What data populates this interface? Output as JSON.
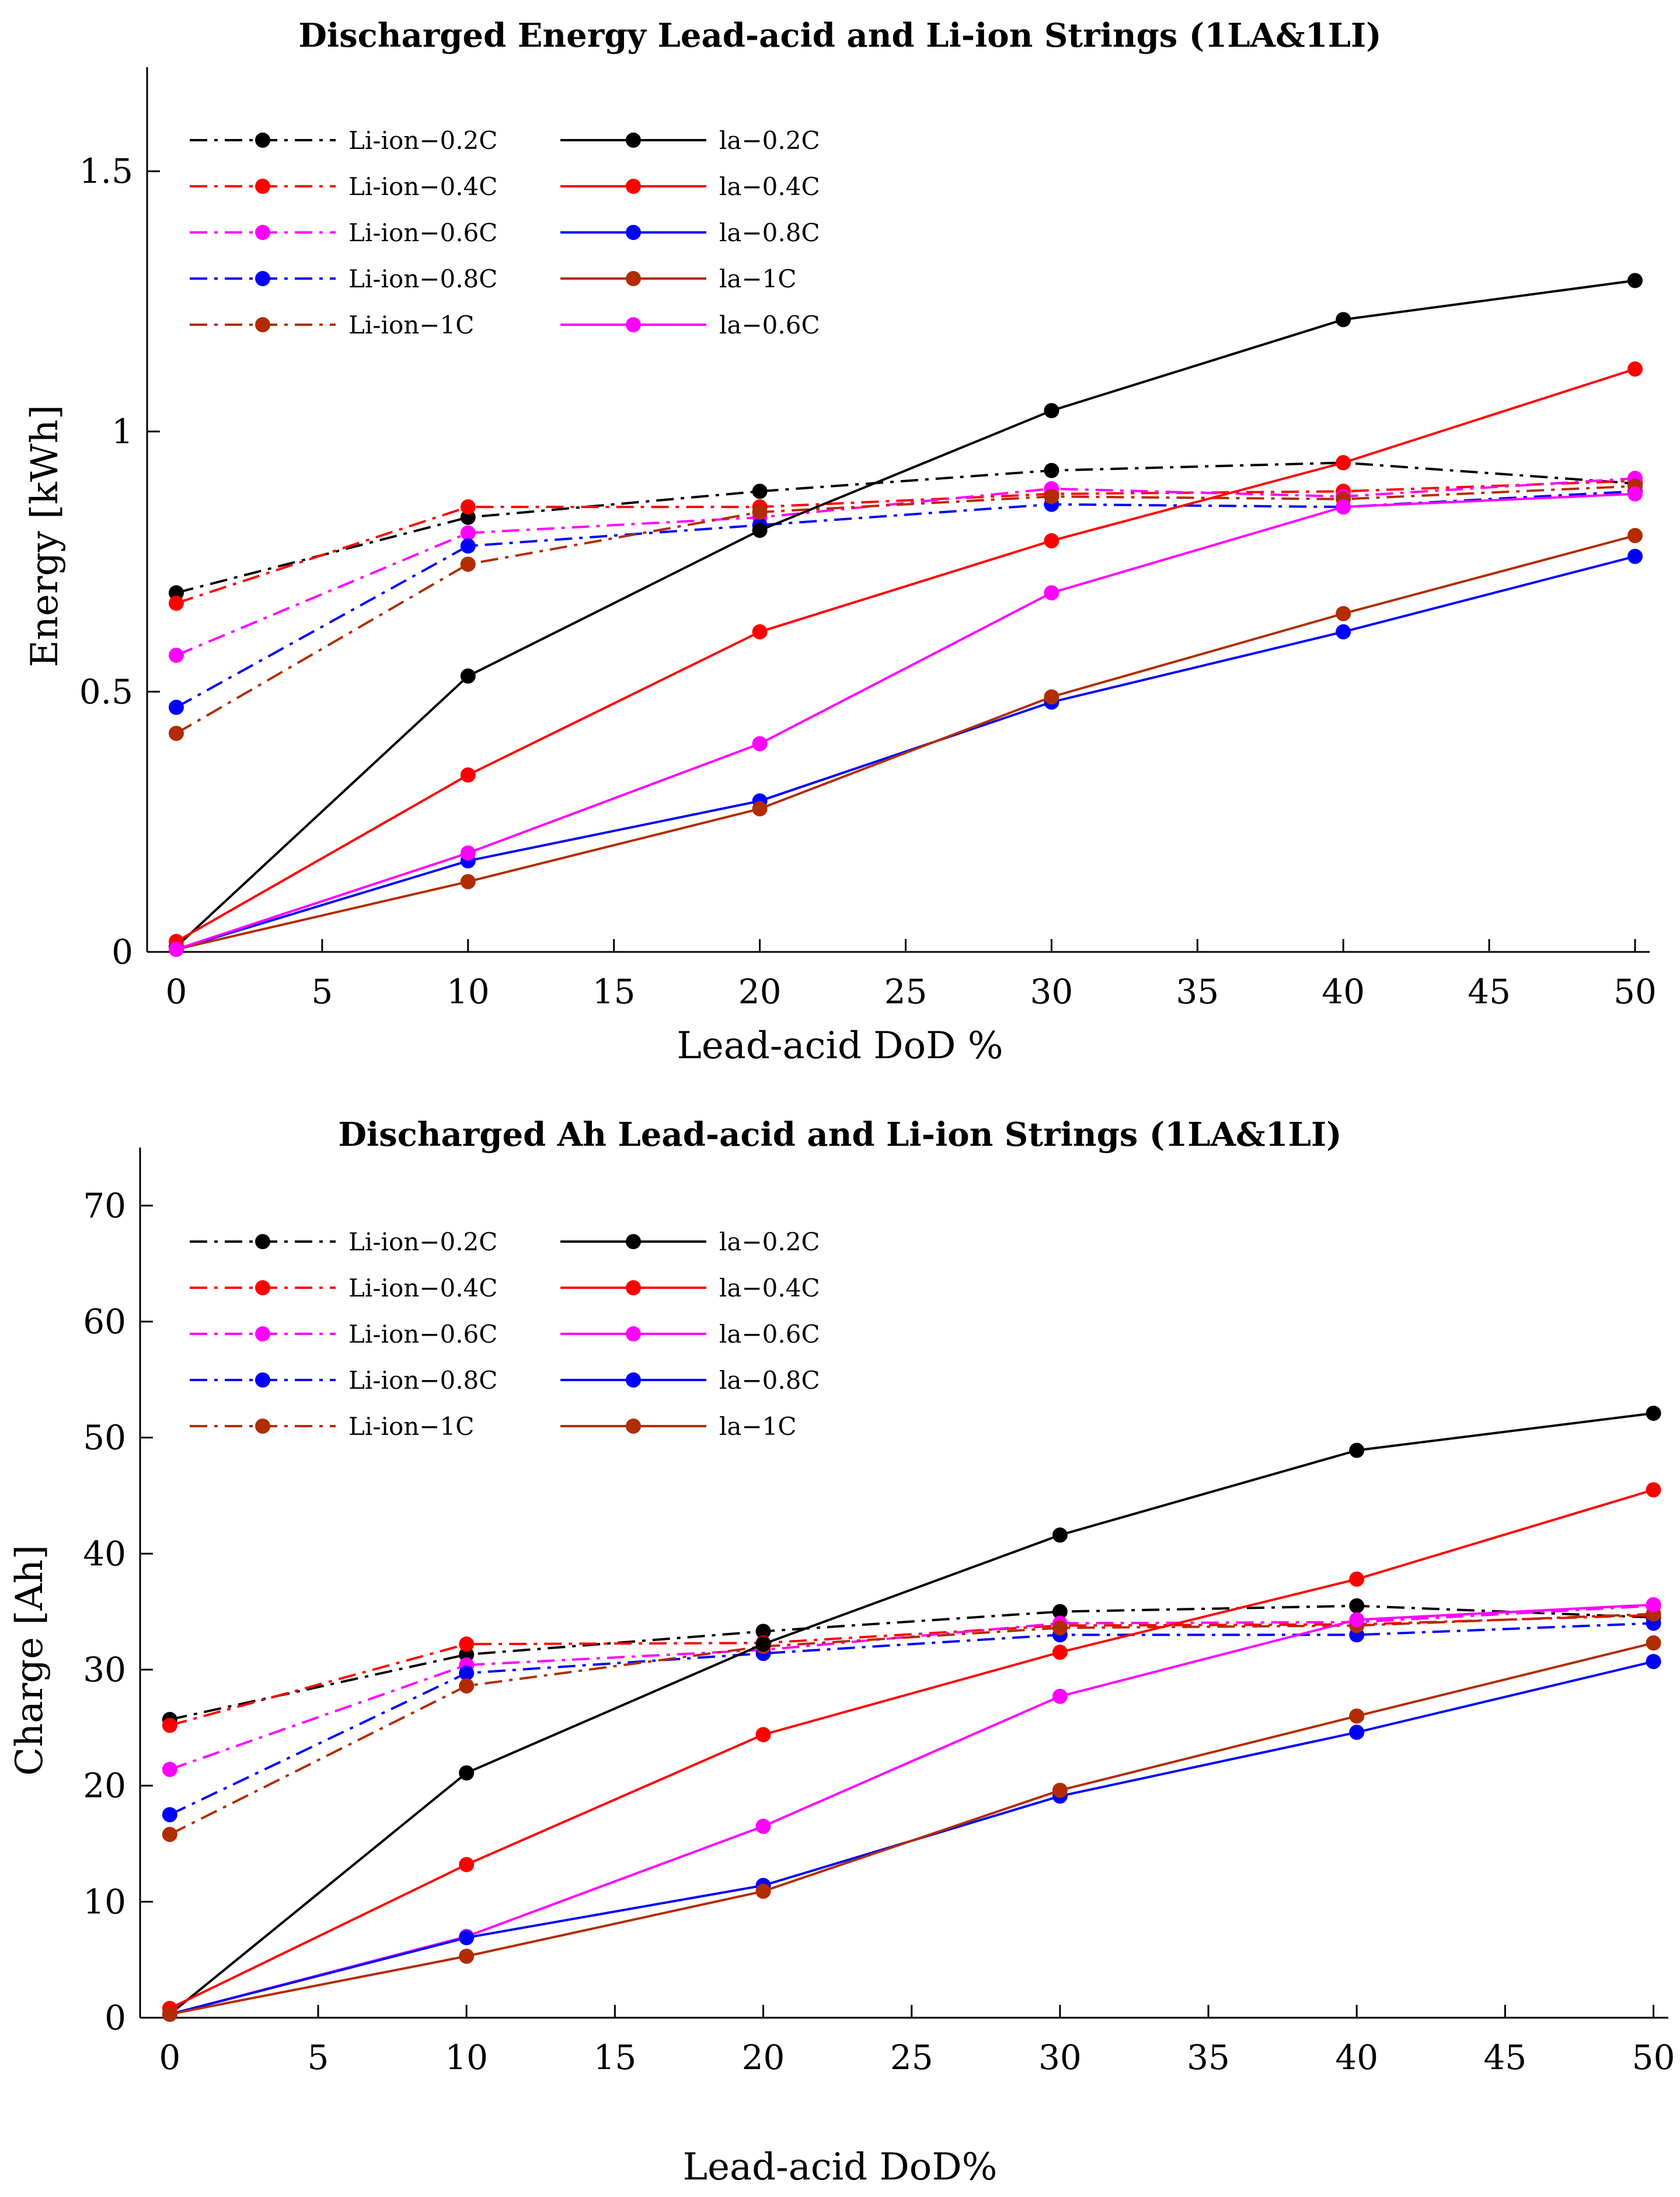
{
  "chart_data": [
    {
      "type": "line",
      "title": "Discharged Energy Lead-acid and Li-ion Strings (1LA&1LI)",
      "xlabel": "Lead-acid DoD %",
      "ylabel": "Energy [kWh]",
      "xlim": [
        -1,
        50.5
      ],
      "ylim": [
        0,
        1.7
      ],
      "xticks": [
        0,
        5,
        10,
        15,
        20,
        25,
        30,
        35,
        40,
        45,
        50
      ],
      "yticks": [
        0,
        0.5,
        1,
        1.5
      ],
      "ytick_labels": [
        "0",
        "0.5",
        "1",
        "1.5"
      ],
      "grid": false,
      "legend_position": "top-left, two columns",
      "x": [
        0,
        10,
        20,
        30,
        40,
        50
      ],
      "series": [
        {
          "name": "Li-ion−0.2C",
          "color": "#000000",
          "style": "dashdot",
          "values": [
            0.69,
            0.835,
            0.885,
            0.925,
            0.94,
            0.9
          ]
        },
        {
          "name": "Li-ion−0.4C",
          "color": "#ff0000",
          "style": "dashdot",
          "values": [
            0.67,
            0.855,
            0.855,
            0.88,
            0.885,
            0.905
          ]
        },
        {
          "name": "Li-ion−0.6C",
          "color": "#ff00ff",
          "style": "dashdot",
          "values": [
            0.57,
            0.805,
            0.835,
            0.89,
            0.875,
            0.91
          ]
        },
        {
          "name": "Li-ion−0.8C",
          "color": "#0000ff",
          "style": "dashdot",
          "values": [
            0.47,
            0.78,
            0.82,
            0.86,
            0.855,
            0.885
          ]
        },
        {
          "name": "Li-ion−1C",
          "color": "#b22c00",
          "style": "dashdot",
          "values": [
            0.42,
            0.745,
            0.845,
            0.875,
            0.87,
            0.895
          ]
        },
        {
          "name": "la−0.2C",
          "color": "#000000",
          "style": "solid",
          "values": [
            0.01,
            0.53,
            0.81,
            1.04,
            1.215,
            1.29
          ]
        },
        {
          "name": "la−0.4C",
          "color": "#ff0000",
          "style": "solid",
          "values": [
            0.02,
            0.34,
            0.615,
            0.79,
            0.94,
            1.12
          ]
        },
        {
          "name": "la−0.8C",
          "color": "#0000ff",
          "style": "solid",
          "values": [
            0.005,
            0.175,
            0.29,
            0.48,
            0.615,
            0.76
          ]
        },
        {
          "name": "la−1C",
          "color": "#b22c00",
          "style": "solid",
          "values": [
            0.005,
            0.135,
            0.275,
            0.49,
            0.65,
            0.8
          ]
        },
        {
          "name": "la−0.6C",
          "color": "#ff00ff",
          "style": "solid",
          "values": [
            0.005,
            0.19,
            0.4,
            0.69,
            0.855,
            0.88
          ]
        }
      ]
    },
    {
      "type": "line",
      "title": "Discharged Ah Lead-acid and Li-ion Strings (1LA&1LI)",
      "xlabel": "Lead-acid DoD%",
      "ylabel": "Charge [Ah]",
      "xlim": [
        -1,
        50.5
      ],
      "ylim": [
        0,
        75
      ],
      "xticks": [
        0,
        5,
        10,
        15,
        20,
        25,
        30,
        35,
        40,
        45,
        50
      ],
      "yticks": [
        0,
        10,
        20,
        30,
        40,
        50,
        60,
        70
      ],
      "ytick_labels": [
        "0",
        "10",
        "20",
        "30",
        "40",
        "50",
        "60",
        "70"
      ],
      "grid": false,
      "legend_position": "top-left, two columns",
      "x": [
        0,
        10,
        20,
        30,
        40,
        50
      ],
      "series": [
        {
          "name": "Li-ion−0.2C",
          "color": "#000000",
          "style": "dashdot",
          "values": [
            25.7,
            31.3,
            33.3,
            35.0,
            35.5,
            34.5
          ]
        },
        {
          "name": "Li-ion−0.4C",
          "color": "#ff0000",
          "style": "dashdot",
          "values": [
            25.2,
            32.2,
            32.3,
            33.8,
            33.9,
            34.7
          ]
        },
        {
          "name": "Li-ion−0.6C",
          "color": "#ff00ff",
          "style": "dashdot",
          "values": [
            21.4,
            30.4,
            31.7,
            34.0,
            34.1,
            35.5
          ]
        },
        {
          "name": "Li-ion−0.8C",
          "color": "#0000ff",
          "style": "dashdot",
          "values": [
            17.5,
            29.7,
            31.4,
            33.0,
            33.0,
            34.0
          ]
        },
        {
          "name": "Li-ion−1C",
          "color": "#b22c00",
          "style": "dashdot",
          "values": [
            15.8,
            28.6,
            32.0,
            33.6,
            33.8,
            34.8
          ]
        },
        {
          "name": "la−0.2C",
          "color": "#000000",
          "style": "solid",
          "values": [
            0.3,
            21.1,
            32.2,
            41.6,
            48.9,
            52.1
          ]
        },
        {
          "name": "la−0.4C",
          "color": "#ff0000",
          "style": "solid",
          "values": [
            0.8,
            13.2,
            24.4,
            31.5,
            37.8,
            45.5
          ]
        },
        {
          "name": "la−0.6C",
          "color": "#ff00ff",
          "style": "solid",
          "values": [
            0.3,
            7.0,
            16.5,
            27.7,
            34.3,
            35.6
          ]
        },
        {
          "name": "la−0.8C",
          "color": "#0000ff",
          "style": "solid",
          "values": [
            0.3,
            6.9,
            11.4,
            19.1,
            24.6,
            30.7
          ]
        },
        {
          "name": "la−1C",
          "color": "#b22c00",
          "style": "solid",
          "values": [
            0.3,
            5.3,
            10.9,
            19.6,
            26.0,
            32.3
          ]
        }
      ]
    }
  ]
}
